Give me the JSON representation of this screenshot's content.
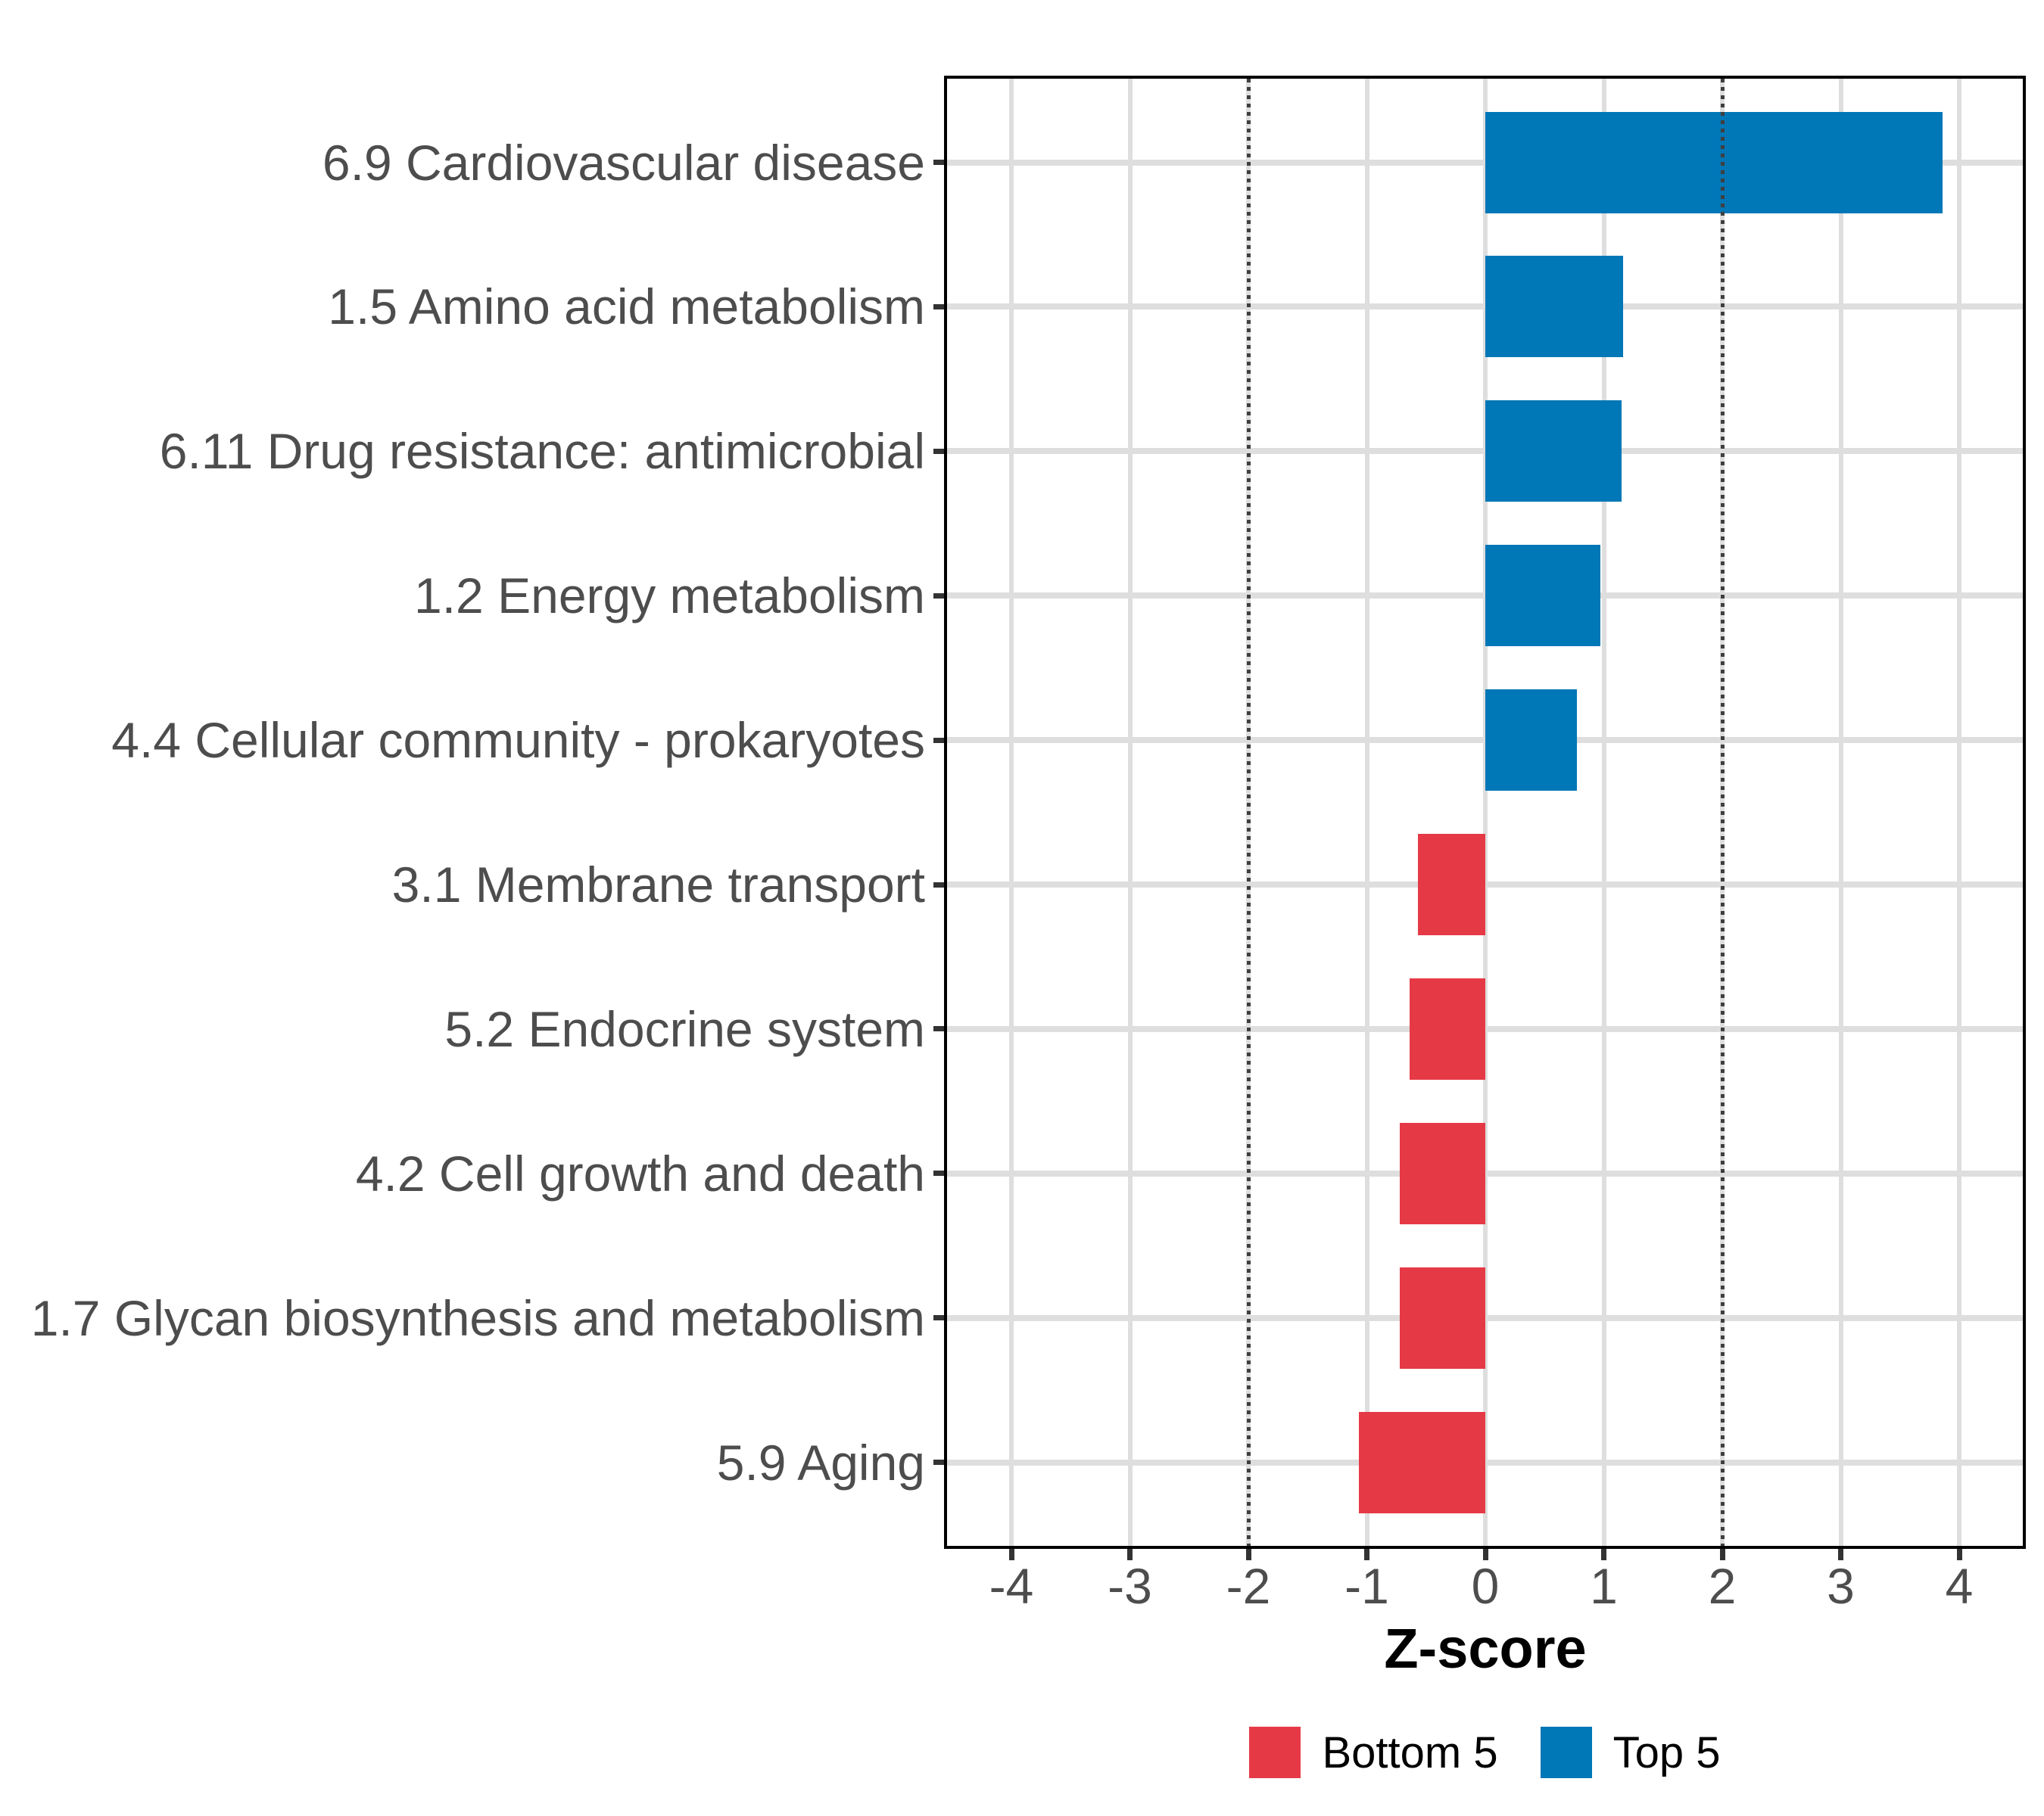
{
  "chart_data": {
    "type": "bar",
    "orientation": "horizontal",
    "title": "",
    "xlabel": "Z-score",
    "ylabel": "",
    "categories": [
      "6.9 Cardiovascular disease",
      "1.5 Amino acid metabolism",
      "6.11 Drug resistance: antimicrobial",
      "1.2 Energy metabolism",
      "4.4 Cellular community - prokaryotes",
      "3.1 Membrane transport",
      "5.2 Endocrine system",
      "4.2 Cell growth and death",
      "1.7 Glycan biosynthesis and metabolism",
      "5.9 Aging"
    ],
    "values": [
      3.86,
      1.16,
      1.15,
      0.97,
      0.77,
      -0.57,
      -0.64,
      -0.72,
      -0.72,
      -1.07
    ],
    "groups": [
      "Top 5",
      "Top 5",
      "Top 5",
      "Top 5",
      "Top 5",
      "Bottom 5",
      "Bottom 5",
      "Bottom 5",
      "Bottom 5",
      "Bottom 5"
    ],
    "x_ticks": [
      -4,
      -3,
      -2,
      -1,
      0,
      1,
      2,
      3,
      4
    ],
    "xlim": [
      -4.56,
      4.56
    ],
    "reference_lines": [
      -2,
      2
    ],
    "grid": true,
    "legend_position": "bottom"
  },
  "legend": [
    {
      "label": "Bottom 5",
      "color": "#e63946"
    },
    {
      "label": "Top 5",
      "color": "#0077b6"
    }
  ],
  "colors": {
    "top5_bar": "#0077b6",
    "bottom5_bar": "#e63946",
    "gridline": "#dedede",
    "reference_line": "#3f3f3f",
    "axis_text": "#4d4d4d",
    "panel_border": "#000000",
    "background": "#ffffff"
  }
}
